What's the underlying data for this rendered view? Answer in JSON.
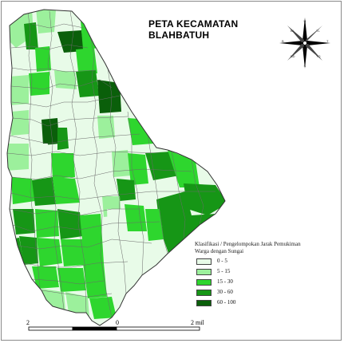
{
  "map": {
    "title_line1": "PETA KECAMATAN",
    "title_line2": "BLAHBATUH",
    "region_colors": {
      "c1": "#e8fbe8",
      "c2": "#9cf09c",
      "c3": "#2ed62e",
      "c4": "#169616",
      "c5": "#0a5f0a"
    }
  },
  "legend": {
    "title_line1": "Klasifikasi / Pengelompokan Jarak Pemukiman",
    "title_line2": "Warga dengan Sungai",
    "items": [
      {
        "label": "0 - 5",
        "color": "#e8fbe8"
      },
      {
        "label": "5 - 15",
        "color": "#9cf09c"
      },
      {
        "label": "15 - 30",
        "color": "#2ed62e"
      },
      {
        "label": "30 - 60",
        "color": "#169616"
      },
      {
        "label": "60 - 100",
        "color": "#0a5f0a"
      }
    ]
  },
  "scale_bar": {
    "left_label": "2",
    "mid_label": "0",
    "right_label": "2 mil"
  },
  "compass": {
    "icon": "compass-rose-icon"
  }
}
